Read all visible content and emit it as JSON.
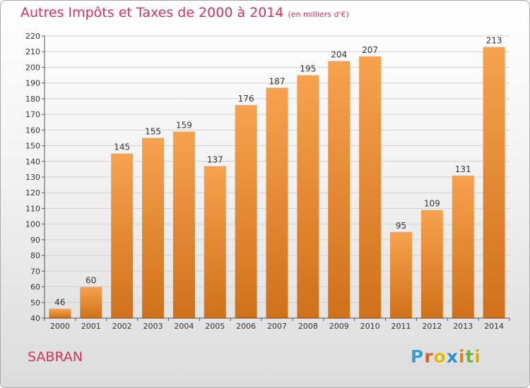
{
  "title": "Autres Impôts et Taxes de 2000 à 2014",
  "subtitle": "(en milliers d'€)",
  "commune": "SABRAN",
  "logo": {
    "text": "Proxiti",
    "letter_colors": [
      "#3a9ad9",
      "#e05a22",
      "#e6b800",
      "#2a8fd6",
      "#ef7d17",
      "#66b83a",
      "#e0b000"
    ]
  },
  "colors": {
    "title": "#d2345c",
    "bar_light": "#f7a24f",
    "bar_dark": "#d0711a",
    "grid": "#cfcfcf"
  },
  "chart_data": {
    "type": "bar",
    "title": "Autres Impôts et Taxes de 2000 à 2014",
    "subtitle": "(en milliers d'€)",
    "categories": [
      "2000",
      "2001",
      "2002",
      "2003",
      "2004",
      "2005",
      "2006",
      "2007",
      "2008",
      "2009",
      "2010",
      "2011",
      "2012",
      "2013",
      "2014"
    ],
    "values": [
      46,
      60,
      145,
      155,
      159,
      137,
      176,
      187,
      195,
      204,
      207,
      95,
      109,
      131,
      213
    ],
    "ylim": [
      40,
      220
    ],
    "yticks": [
      40,
      50,
      60,
      70,
      80,
      90,
      100,
      110,
      120,
      130,
      140,
      150,
      160,
      170,
      180,
      190,
      200,
      210,
      220
    ],
    "grid": true,
    "xlabel": "",
    "ylabel": ""
  }
}
